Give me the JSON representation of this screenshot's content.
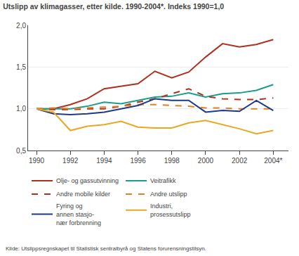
{
  "chart_data": {
    "type": "line",
    "title": "Utslipp av klimagasser, etter kilde. 1990-2004*. Indeks 1990=1,0",
    "annotations": [
      "Kilde: Utslippsregnskapet til Statistisk sentralbyrå og Statens forurensningstilsyn."
    ],
    "x": [
      1990,
      1991,
      1992,
      1993,
      1994,
      1995,
      1996,
      1997,
      1998,
      1999,
      2000,
      2001,
      2002,
      2003,
      2004
    ],
    "series": [
      {
        "name": "Olje- og gassutvinning",
        "color": "#b03020",
        "line_style": "solid",
        "values": [
          1.0,
          1.0,
          1.05,
          1.12,
          1.24,
          1.27,
          1.3,
          1.45,
          1.37,
          1.44,
          1.62,
          1.78,
          1.74,
          1.77,
          1.83
        ]
      },
      {
        "name": "Veitrafikk",
        "color": "#1a9e8c",
        "line_style": "solid",
        "values": [
          1.0,
          1.0,
          1.0,
          1.03,
          1.08,
          1.06,
          1.1,
          1.14,
          1.15,
          1.19,
          1.14,
          1.18,
          1.19,
          1.22,
          1.29
        ]
      },
      {
        "name": "Andre mobile kilder",
        "color": "#b03020",
        "line_style": "dashed",
        "values": [
          1.0,
          0.99,
          0.99,
          1.0,
          1.0,
          1.03,
          1.08,
          1.12,
          1.18,
          1.24,
          1.15,
          1.12,
          1.11,
          1.11,
          1.13
        ]
      },
      {
        "name": "Andre utslipp",
        "color": "#e08020",
        "line_style": "dashed",
        "values": [
          1.0,
          1.01,
          1.0,
          1.01,
          1.02,
          1.03,
          1.05,
          1.05,
          1.04,
          1.03,
          1.01,
          1.01,
          1.0,
          1.0,
          1.0
        ]
      },
      {
        "name": "Fyring og\nannen stasjo-\nnær forbrenning",
        "color": "#1c3a8c",
        "line_style": "solid",
        "values": [
          1.0,
          0.94,
          0.93,
          0.94,
          0.96,
          1.0,
          1.04,
          1.12,
          1.1,
          1.1,
          0.96,
          0.98,
          0.97,
          1.1,
          0.98
        ]
      },
      {
        "name": "Industri,\nprosessutslipp",
        "color": "#e8a820",
        "line_style": "solid",
        "values": [
          1.0,
          0.96,
          0.74,
          0.79,
          0.81,
          0.85,
          0.78,
          0.77,
          0.77,
          0.83,
          0.86,
          0.81,
          0.76,
          0.7,
          0.74
        ]
      }
    ],
    "xlim": [
      1989.5,
      2004.9
    ],
    "xticks": [
      1990,
      1992,
      1994,
      1996,
      1998,
      2000,
      2002,
      {
        "value": 2004,
        "label": "2004*"
      }
    ],
    "ylim": [
      0.5,
      2.0
    ],
    "yticks": [
      {
        "value": 0.5,
        "label": "0,5"
      },
      {
        "value": 1.0,
        "label": "1,0"
      },
      {
        "value": 1.5,
        "label": "1,5"
      },
      {
        "value": 2.0,
        "label": "2,0"
      }
    ],
    "grid": "y",
    "legend": "bottom"
  }
}
